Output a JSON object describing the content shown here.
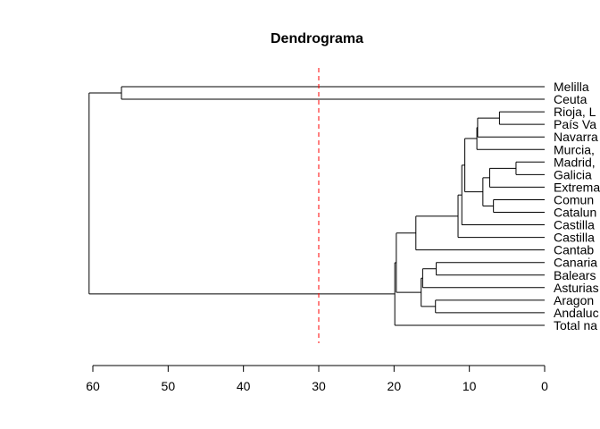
{
  "chart_data": {
    "type": "dendrogram",
    "title": "Dendrograma",
    "xlim": [
      60,
      0
    ],
    "x_ticks": [
      "60",
      "50",
      "40",
      "30",
      "20",
      "10",
      "0"
    ],
    "cut_line": {
      "value": 30,
      "color": "#ff0000",
      "style": "dashed"
    },
    "leaves": [
      "Melilla",
      "Ceuta",
      "Rioja, L",
      "País Va",
      "Navarra",
      "Murcia,",
      "Madrid,",
      "Galicia",
      "Extrema",
      "Comun",
      "Catalun",
      "Castilla",
      "Castilla",
      "Cantab",
      "Canaria",
      "Balears",
      "Asturias",
      "Aragon",
      "Andaluc",
      "Total na"
    ],
    "merges": [
      {
        "a": "L:2",
        "b": "L:3",
        "height": 6.0
      },
      {
        "a": "L:6",
        "b": "L:7",
        "height": 3.8
      },
      {
        "a": "L:9",
        "b": "L:10",
        "height": 6.8
      },
      {
        "a": "L:14",
        "b": "L:15",
        "height": 14.4
      },
      {
        "a": "L:17",
        "b": "L:18",
        "height": 14.5
      },
      {
        "a": "L:4",
        "b": "M:0",
        "height": 8.9
      },
      {
        "a": "L:5",
        "b": "M:5",
        "height": 9.0
      },
      {
        "a": "M:1",
        "b": "L:8",
        "height": 7.3
      },
      {
        "a": "M:7",
        "b": "M:2",
        "height": 8.2
      },
      {
        "a": "M:6",
        "b": "M:8",
        "height": 10.6
      },
      {
        "a": "M:9",
        "b": "L:11",
        "height": 11.0
      },
      {
        "a": "M:10",
        "b": "L:12",
        "height": 11.5
      },
      {
        "a": "M:11",
        "b": "L:13",
        "height": 17.1
      },
      {
        "a": "M:3",
        "b": "L:16",
        "height": 16.2
      },
      {
        "a": "M:13",
        "b": "M:4",
        "height": 16.4
      },
      {
        "a": "M:12",
        "b": "M:14",
        "height": 19.7
      },
      {
        "a": "M:15",
        "b": "L:19",
        "height": 19.9
      },
      {
        "a": "L:0",
        "b": "L:1",
        "height": 56.2
      },
      {
        "a": "M:17",
        "b": "M:16",
        "height": 60.5
      }
    ]
  }
}
